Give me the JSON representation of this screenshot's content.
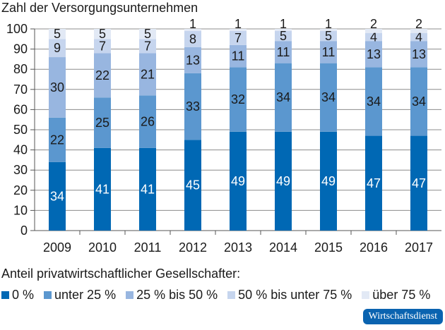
{
  "chart_data": {
    "type": "stacked-bar",
    "title": "Zahl der Versorgungsunternehmen",
    "categories": [
      "2009",
      "2010",
      "2011",
      "2012",
      "2013",
      "2014",
      "2015",
      "2016",
      "2017"
    ],
    "series": [
      {
        "name": "0 %",
        "color": "#0068b4",
        "values": [
          34,
          41,
          41,
          45,
          49,
          49,
          49,
          47,
          47
        ]
      },
      {
        "name": "unter 25 %",
        "color": "#5b97cf",
        "values": [
          22,
          25,
          26,
          33,
          32,
          34,
          34,
          34,
          34
        ]
      },
      {
        "name": "25 % bis 50 %",
        "color": "#98b6e0",
        "values": [
          30,
          22,
          21,
          13,
          11,
          11,
          11,
          13,
          13
        ]
      },
      {
        "name": "50 % bis unter 75 %",
        "color": "#c6d5ee",
        "values": [
          9,
          7,
          7,
          8,
          7,
          5,
          5,
          4,
          4
        ]
      },
      {
        "name": "über 75 %",
        "color": "#e2e9f5",
        "values": [
          5,
          5,
          5,
          1,
          1,
          1,
          1,
          2,
          2
        ]
      }
    ],
    "ylim": [
      0,
      100
    ],
    "yticks": [
      0,
      10,
      20,
      30,
      40,
      50,
      60,
      70,
      80,
      90,
      100
    ],
    "grid": true,
    "legend_title": "Anteil privatwirtschaftlicher Gesellschafter:",
    "legend_position": "bottom"
  },
  "source_logo": "Wirtschaftsdienst"
}
